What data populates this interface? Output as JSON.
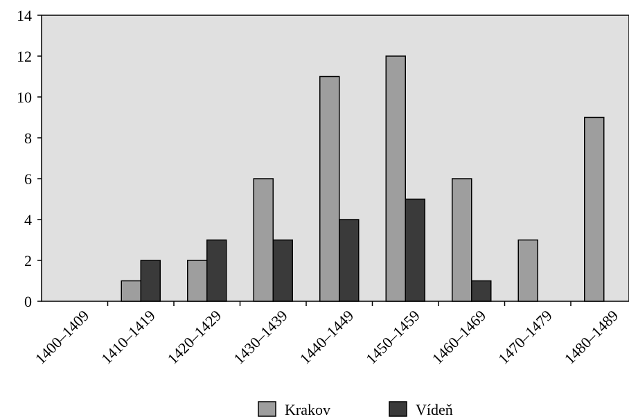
{
  "chart_data": {
    "type": "bar",
    "categories": [
      "1400–1409",
      "1410–1419",
      "1420–1429",
      "1430–1439",
      "1440–1449",
      "1450–1459",
      "1460–1469",
      "1470–1479",
      "1480–1489"
    ],
    "series": [
      {
        "name": "Krakov",
        "values": [
          0,
          1,
          2,
          6,
          11,
          12,
          6,
          3,
          9
        ],
        "color": "#9e9e9e"
      },
      {
        "name": "Vídeň",
        "values": [
          0,
          2,
          3,
          3,
          4,
          5,
          1,
          0,
          0
        ],
        "color": "#3a3a3a"
      }
    ],
    "y_ticks": [
      0,
      2,
      4,
      6,
      8,
      10,
      12,
      14
    ],
    "ylim": [
      0,
      14
    ],
    "grid": false,
    "plot_background": "#e0e0e0",
    "legend_position": "bottom-center",
    "title": "",
    "xlabel": "",
    "ylabel": ""
  }
}
